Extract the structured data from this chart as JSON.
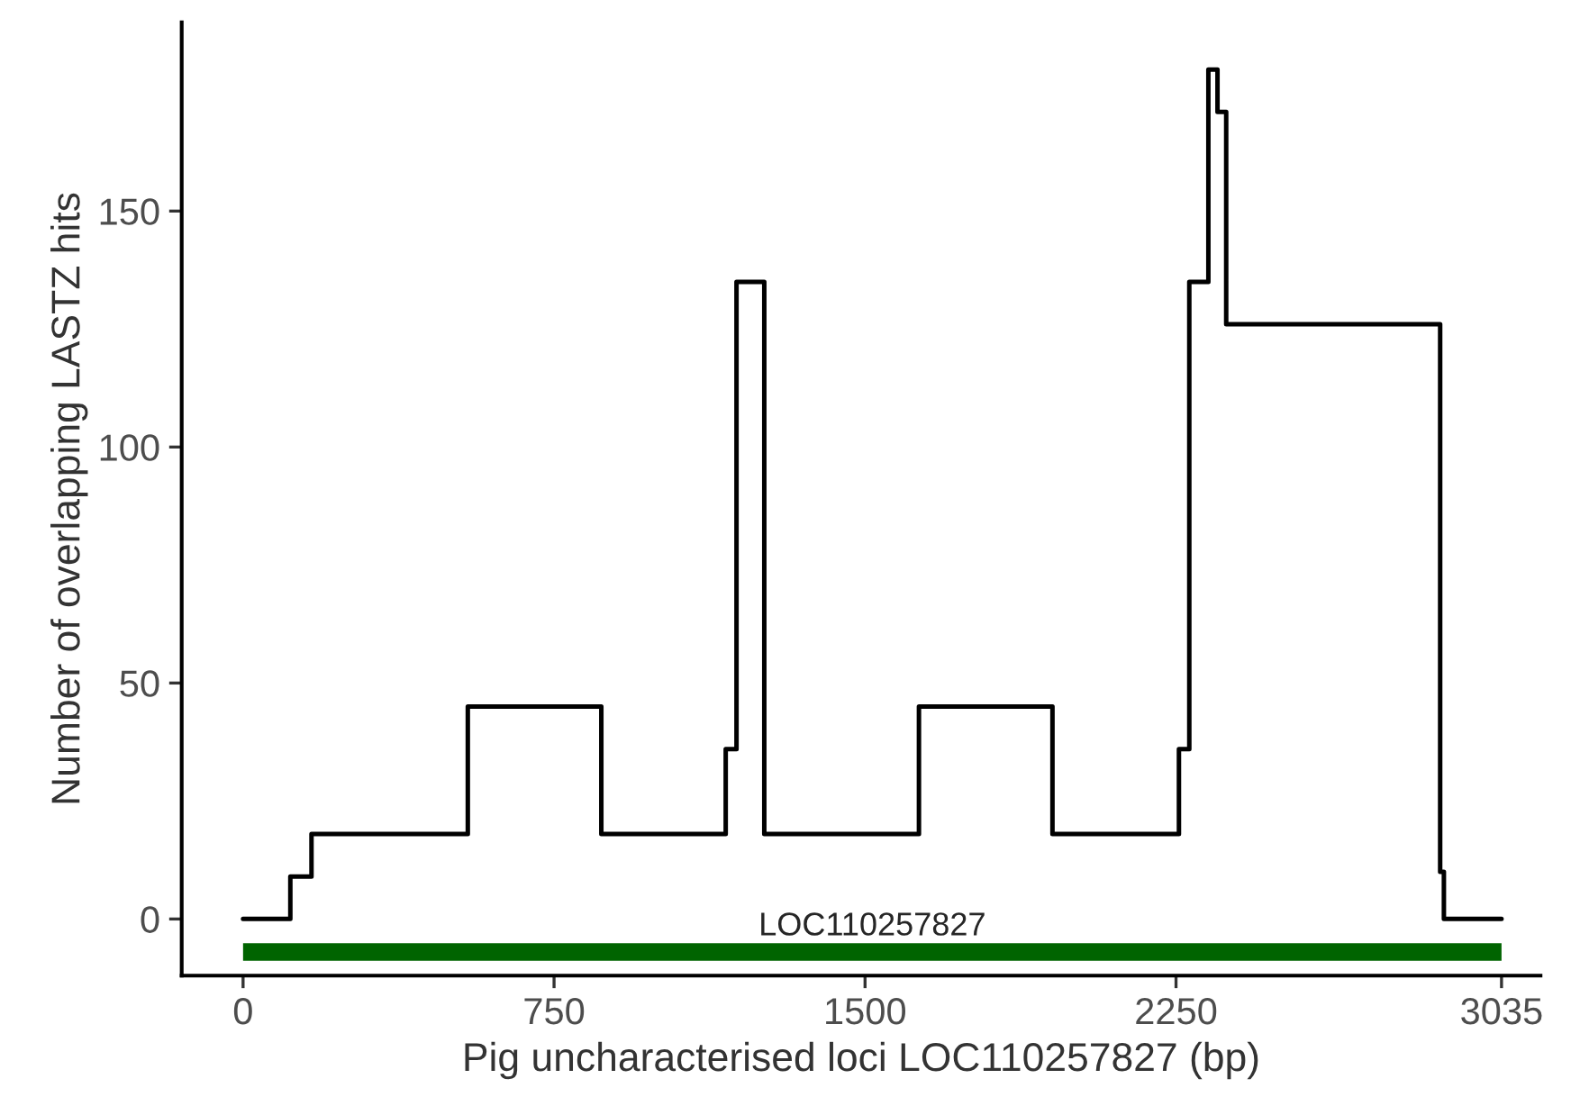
{
  "chart_data": {
    "type": "step",
    "xlabel": "Pig uncharacterised loci LOC110257827 (bp)",
    "ylabel": "Number of overlapping LASTZ hits",
    "series": [
      {
        "color": "#000000",
        "x": [
          0,
          114,
          165,
          542,
          864,
          1164,
          1190,
          1257,
          1630,
          1952,
          2257,
          2282,
          2328,
          2350,
          2371,
          2887,
          2896,
          3035
        ],
        "values": [
          0,
          9,
          18,
          45,
          18,
          36,
          135,
          18,
          45,
          18,
          36,
          135,
          180,
          171,
          126,
          10,
          0,
          0
        ]
      },
      {
        "type": "line",
        "name": "LOC110257827",
        "color": "#006400",
        "x": [
          0,
          3035
        ],
        "values": [
          -7,
          -7
        ]
      }
    ],
    "xlim": [
      -148,
      3129
    ],
    "ylim": [
      -12,
      190
    ],
    "xticks": [
      0,
      750,
      1500,
      2250,
      3035
    ],
    "yticks": [
      0,
      50,
      100,
      150
    ],
    "grid": false,
    "legend": false
  }
}
